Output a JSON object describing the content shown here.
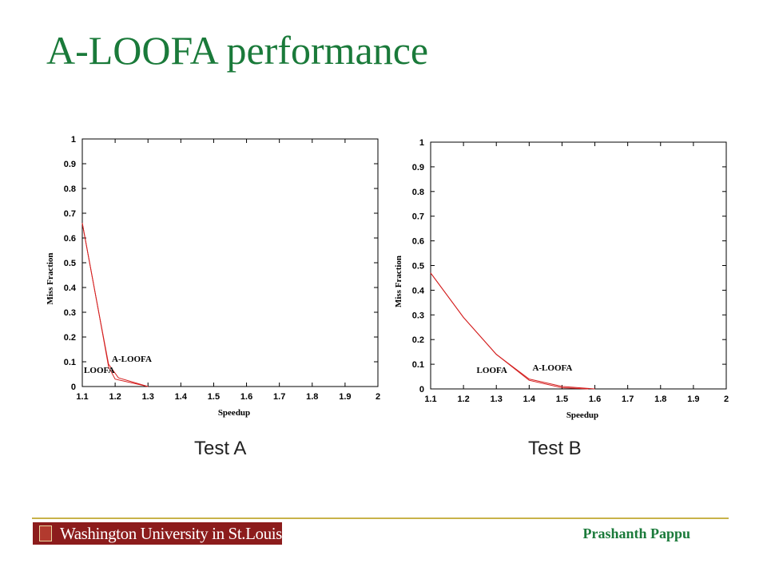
{
  "slide": {
    "title": "A-LOOFA performance",
    "author": "Prashanth Pappu",
    "logo_text": "Washington University in St.Louis"
  },
  "chart_data": [
    {
      "type": "line",
      "caption": "Test A",
      "xlabel": "Speedup",
      "ylabel": "Miss Fraction",
      "xlim": [
        1.1,
        2
      ],
      "ylim": [
        0,
        1
      ],
      "x_ticks": [
        "1.1",
        "1.2",
        "1.3",
        "1.4",
        "1.5",
        "1.6",
        "1.7",
        "1.8",
        "1.9",
        "2"
      ],
      "y_ticks": [
        "0",
        "0.1",
        "0.2",
        "0.3",
        "0.4",
        "0.5",
        "0.6",
        "0.7",
        "0.8",
        "0.9",
        "1"
      ],
      "grid": false,
      "series": [
        {
          "name": "LOOFA",
          "color": "#d42020",
          "x": [
            1.1,
            1.15,
            1.18,
            1.2,
            1.3
          ],
          "y": [
            0.66,
            0.3,
            0.08,
            0.03,
            0
          ]
        },
        {
          "name": "A-LOOFA",
          "color": "#d42020",
          "x": [
            1.1,
            1.15,
            1.18,
            1.21,
            1.3
          ],
          "y": [
            0.66,
            0.3,
            0.09,
            0.035,
            0
          ]
        }
      ],
      "annotations": [
        {
          "text": "A-LOOFA",
          "x": 1.19,
          "y": 0.1
        },
        {
          "text": "LOOFA",
          "x": 1.105,
          "y": 0.055
        }
      ]
    },
    {
      "type": "line",
      "caption": "Test B",
      "xlabel": "Speedup",
      "ylabel": "Miss Fraction",
      "xlim": [
        1.1,
        2
      ],
      "ylim": [
        0,
        1
      ],
      "x_ticks": [
        "1.1",
        "1.2",
        "1.3",
        "1.4",
        "1.5",
        "1.6",
        "1.7",
        "1.8",
        "1.9",
        "2"
      ],
      "y_ticks": [
        "0",
        "0.1",
        "0.2",
        "0.3",
        "0.4",
        "0.5",
        "0.6",
        "0.7",
        "0.8",
        "0.9",
        "1"
      ],
      "grid": false,
      "series": [
        {
          "name": "LOOFA",
          "color": "#d42020",
          "x": [
            1.1,
            1.2,
            1.3,
            1.4,
            1.5,
            1.6
          ],
          "y": [
            0.47,
            0.29,
            0.14,
            0.04,
            0.01,
            0
          ]
        },
        {
          "name": "A-LOOFA",
          "color": "#d42020",
          "x": [
            1.1,
            1.2,
            1.3,
            1.4,
            1.5,
            1.58
          ],
          "y": [
            0.47,
            0.29,
            0.14,
            0.035,
            0.005,
            0
          ]
        }
      ],
      "annotations": [
        {
          "text": "LOOFA",
          "x": 1.24,
          "y": 0.065
        },
        {
          "text": "A-LOOFA",
          "x": 1.41,
          "y": 0.075
        }
      ]
    }
  ]
}
